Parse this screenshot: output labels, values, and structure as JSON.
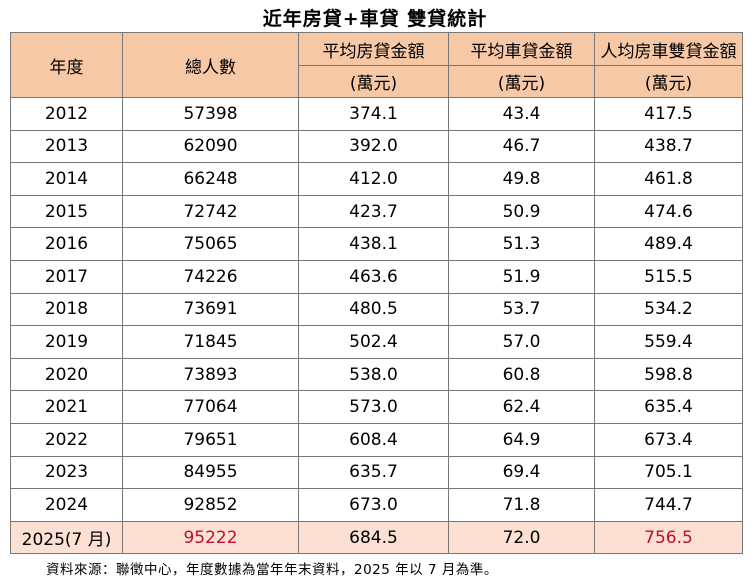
{
  "title": "近年房貸+車貸  雙貸統計",
  "headers": [
    {
      "top": "年度",
      "bottom": ""
    },
    {
      "top": "總人數",
      "bottom": ""
    },
    {
      "top": "平均房貸金額",
      "bottom": "(萬元)"
    },
    {
      "top": "平均車貸金額",
      "bottom": "(萬元)"
    },
    {
      "top": "人均房車雙貸金額",
      "bottom": "(萬元)"
    }
  ],
  "rows": [
    [
      "2012",
      "57398",
      "374.1",
      "43.4",
      "417.5"
    ],
    [
      "2013",
      "62090",
      "392.0",
      "46.7",
      "438.7"
    ],
    [
      "2014",
      "66248",
      "412.0",
      "49.8",
      "461.8"
    ],
    [
      "2015",
      "72742",
      "423.7",
      "50.9",
      "474.6"
    ],
    [
      "2016",
      "75065",
      "438.1",
      "51.3",
      "489.4"
    ],
    [
      "2017",
      "74226",
      "463.6",
      "51.9",
      "515.5"
    ],
    [
      "2018",
      "73691",
      "480.5",
      "53.7",
      "534.2"
    ],
    [
      "2019",
      "71845",
      "502.4",
      "57.0",
      "559.4"
    ],
    [
      "2020",
      "73893",
      "538.0",
      "60.8",
      "598.8"
    ],
    [
      "2021",
      "77064",
      "573.0",
      "62.4",
      "635.4"
    ],
    [
      "2022",
      "79651",
      "608.4",
      "64.9",
      "673.4"
    ],
    [
      "2023",
      "84955",
      "635.7",
      "69.4",
      "705.1"
    ],
    [
      "2024",
      "92852",
      "673.0",
      "71.8",
      "744.7"
    ],
    [
      "2025(7 月)",
      "95222",
      "684.5",
      "72.0",
      "756.5"
    ]
  ],
  "highlight_color": "#c0102a",
  "note": "資料來源：聯徵中心，年度數據為當年年末資料，2025 年以 7 月為準。"
}
